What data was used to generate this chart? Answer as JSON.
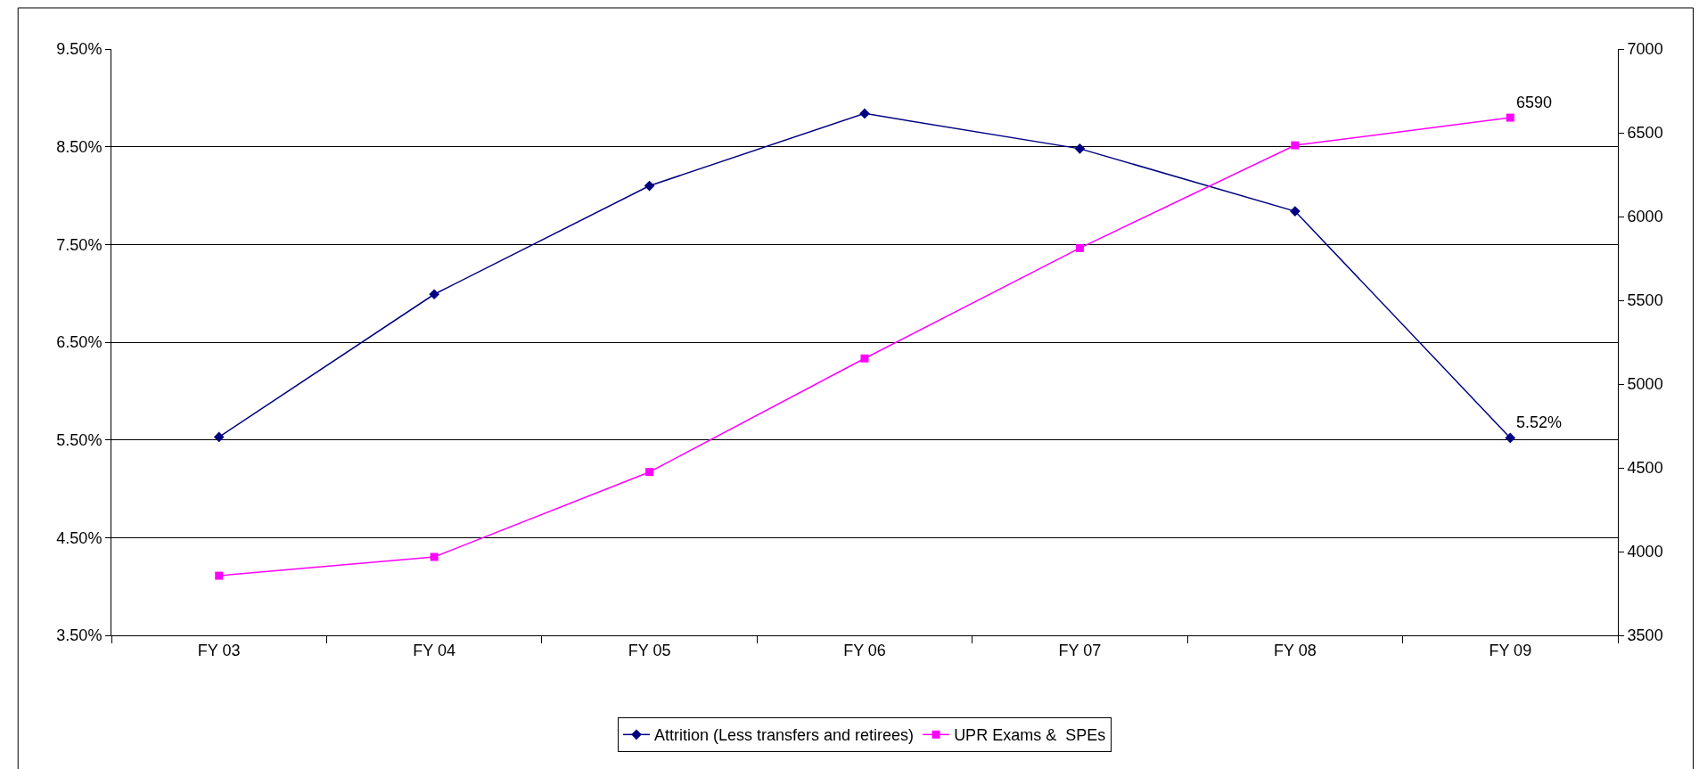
{
  "chart_data": {
    "type": "line",
    "categories": [
      "FY 03",
      "FY 04",
      "FY 05",
      "FY 06",
      "FY 07",
      "FY 08",
      "FY 09"
    ],
    "series": [
      {
        "name": "Attrition (Less transfers and retirees)",
        "color": "#000080",
        "marker": "diamond",
        "values": [
          5.53,
          6.99,
          8.1,
          8.84,
          8.48,
          7.84,
          5.52
        ],
        "value_labels": [
          null,
          null,
          null,
          null,
          null,
          null,
          "5.52%"
        ]
      },
      {
        "name": "UPR Exams &  SPEs",
        "color": "#ff00ff",
        "marker": "square",
        "axis": "y2",
        "values": [
          3856,
          3968,
          4475,
          5153,
          5812,
          6425,
          6590
        ],
        "value_labels": [
          null,
          null,
          null,
          null,
          null,
          null,
          "6590"
        ]
      }
    ],
    "ylim": [
      3.5,
      9.5
    ],
    "yticks": [
      {
        "value": 3.5,
        "label": "3.50%"
      },
      {
        "value": 4.5,
        "label": "4.50%"
      },
      {
        "value": 5.5,
        "label": "5.50%"
      },
      {
        "value": 6.5,
        "label": "6.50%"
      },
      {
        "value": 7.5,
        "label": "7.50%"
      },
      {
        "value": 8.5,
        "label": "8.50%"
      },
      {
        "value": 9.5,
        "label": "9.50%"
      }
    ],
    "y2lim": [
      3500,
      7000
    ],
    "y2ticks": [
      3500,
      4000,
      4500,
      5000,
      5500,
      6000,
      6500,
      7000
    ],
    "grid": "y",
    "legend": "bottom",
    "line_style": "solid"
  }
}
